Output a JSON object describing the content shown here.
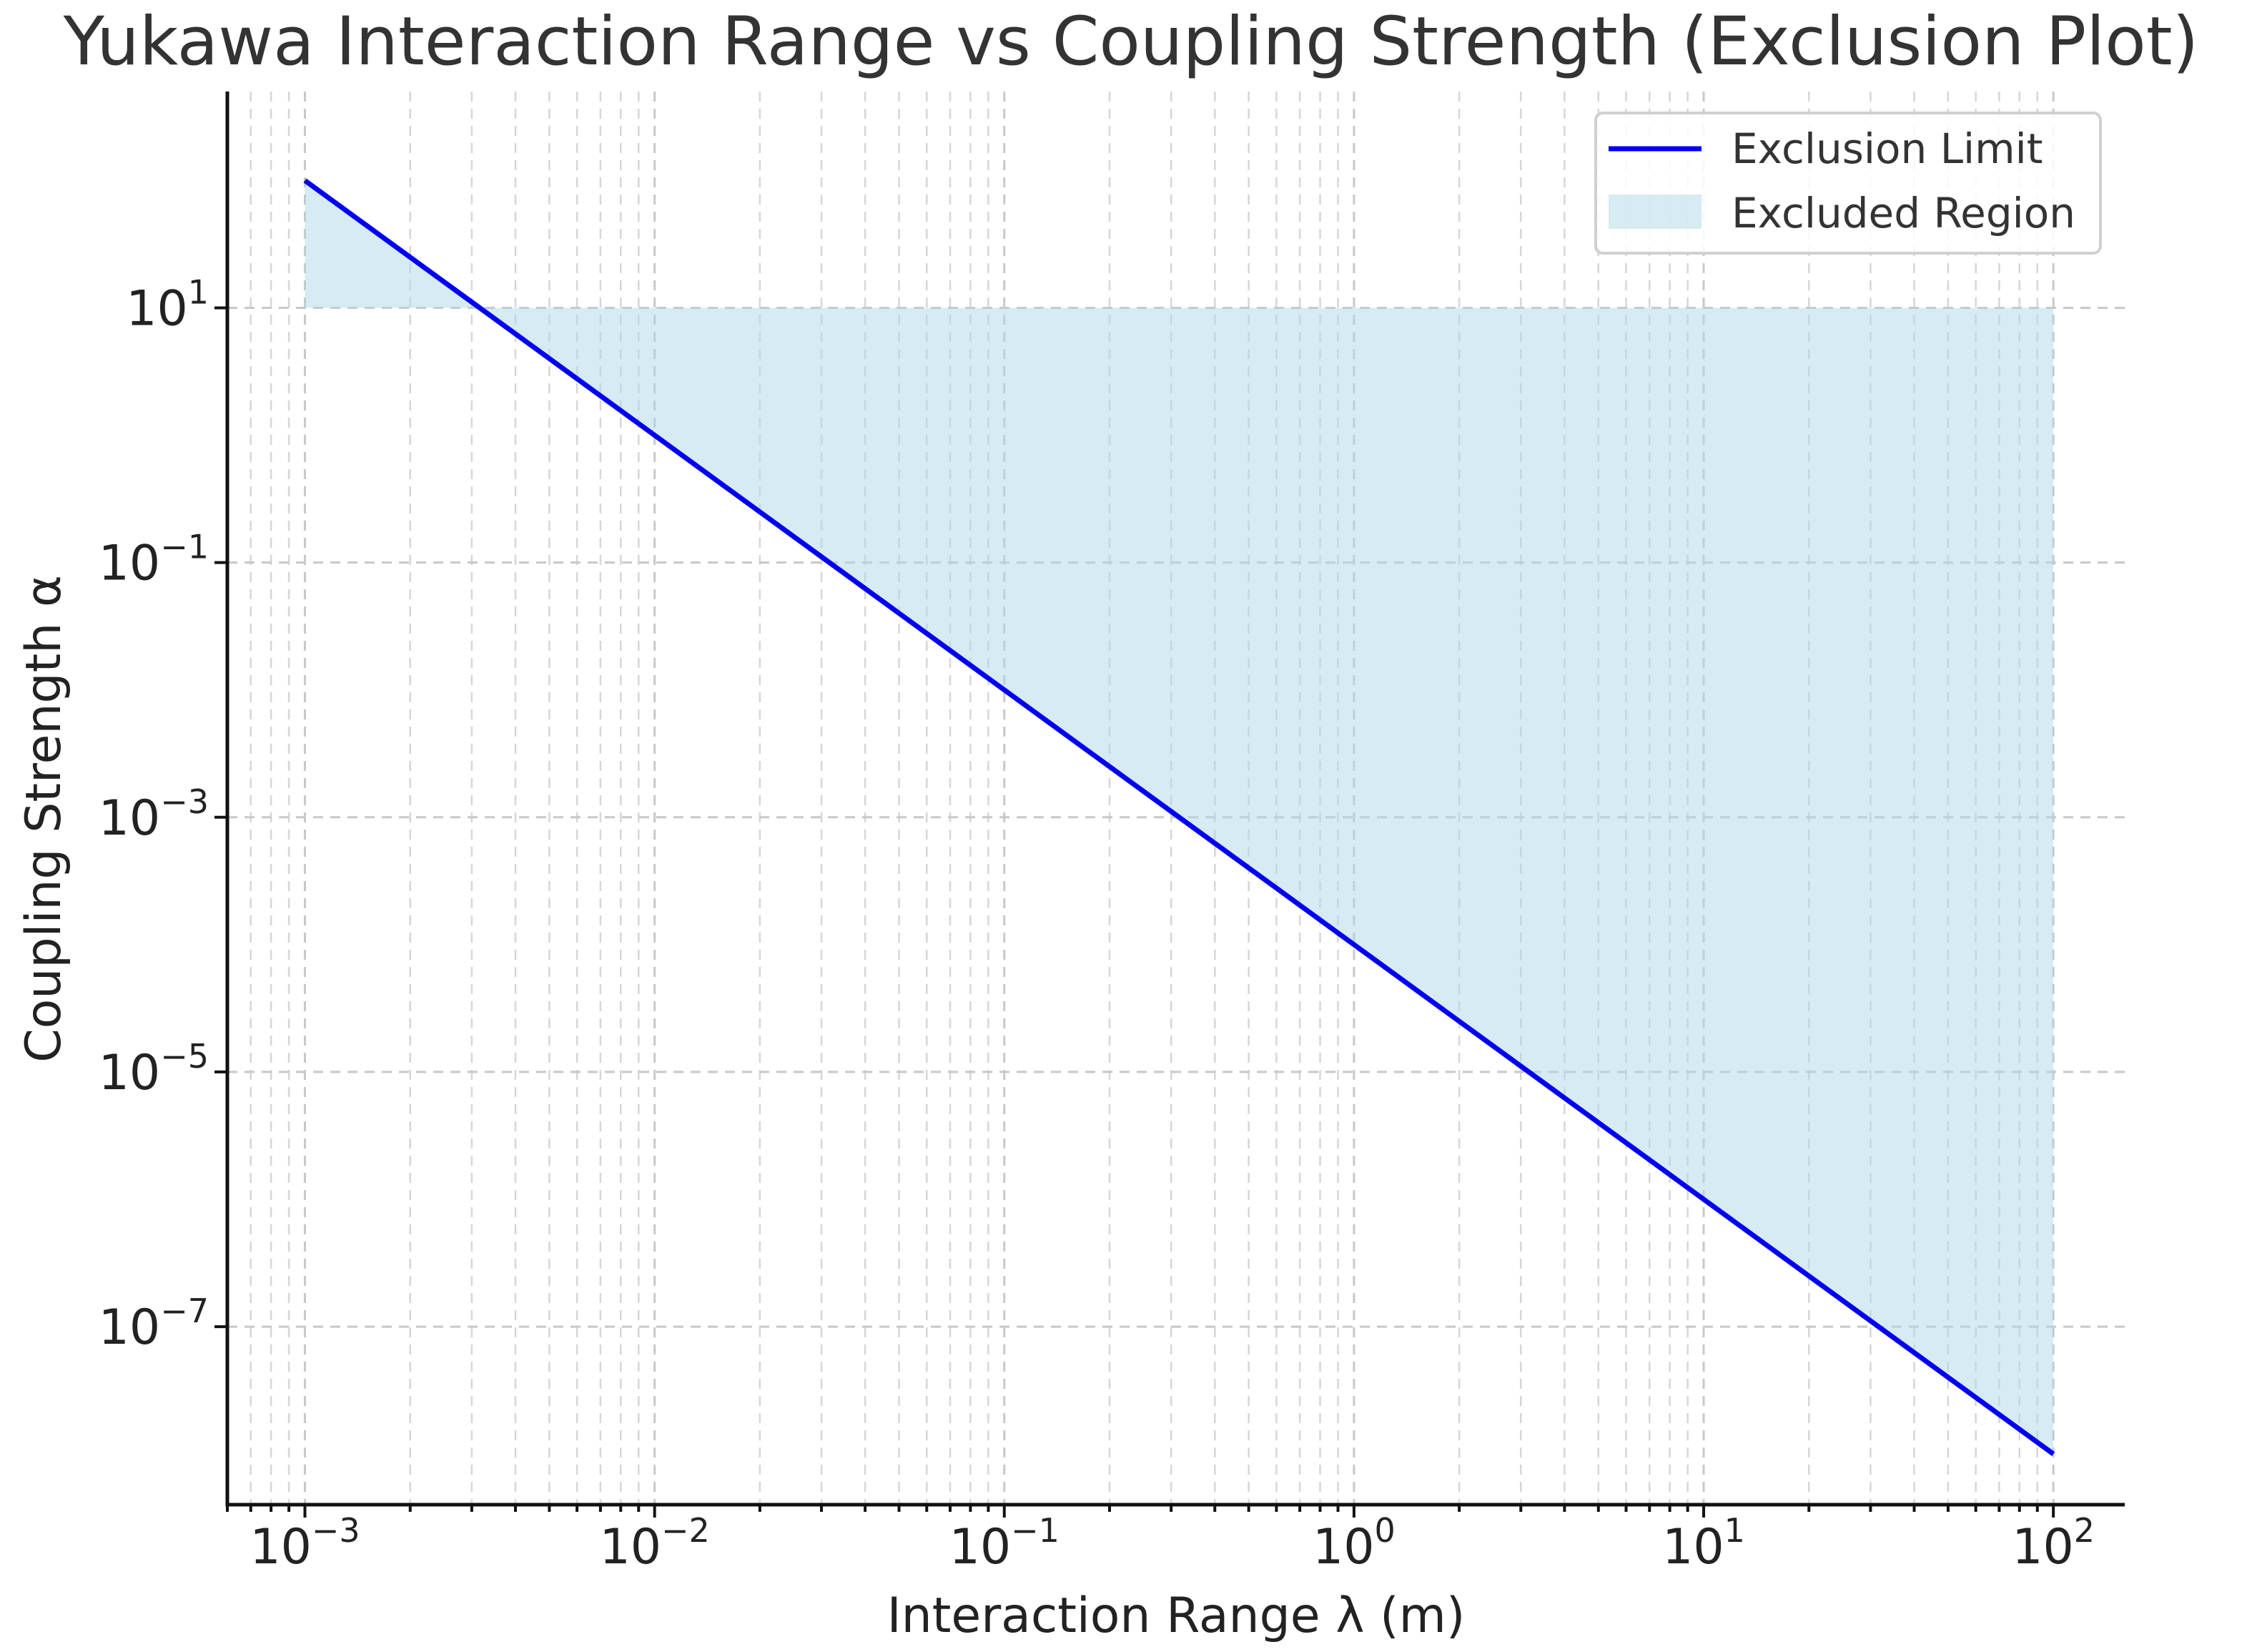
{
  "chart_data": {
    "type": "line",
    "title": "Yukawa Interaction Range vs Coupling Strength (Exclusion Plot)",
    "xlabel": "Interaction Range λ (m)",
    "ylabel": "Coupling Strength α",
    "x_scale": "log",
    "y_scale": "log",
    "xlim": [
      0.0006,
      160
    ],
    "ylim": [
      4e-09,
      500
    ],
    "grid": true,
    "legend_position": "top-right",
    "x_ticks": [
      {
        "base": "10",
        "exp": "−3",
        "value": 0.001
      },
      {
        "base": "10",
        "exp": "−2",
        "value": 0.01
      },
      {
        "base": "10",
        "exp": "−1",
        "value": 0.1
      },
      {
        "base": "10",
        "exp": "0",
        "value": 1
      },
      {
        "base": "10",
        "exp": "1",
        "value": 10
      },
      {
        "base": "10",
        "exp": "2",
        "value": 100
      }
    ],
    "y_ticks": [
      {
        "base": "10",
        "exp": "1",
        "value": 10
      },
      {
        "base": "10",
        "exp": "−1",
        "value": 0.1
      },
      {
        "base": "10",
        "exp": "−3",
        "value": 0.001
      },
      {
        "base": "10",
        "exp": "−5",
        "value": 1e-05
      },
      {
        "base": "10",
        "exp": "−7",
        "value": 1e-07
      }
    ],
    "series": [
      {
        "name": "Exclusion Limit",
        "kind": "line",
        "color": "#0000ee",
        "x": [
          0.001,
          100
        ],
        "y": [
          100,
          1e-08
        ]
      },
      {
        "name": "Excluded Region",
        "kind": "fill_between",
        "color": "#add8e6",
        "x": [
          0.001,
          100
        ],
        "y_lower": [
          100,
          1e-08
        ],
        "y_upper": [
          10,
          10
        ]
      }
    ]
  }
}
